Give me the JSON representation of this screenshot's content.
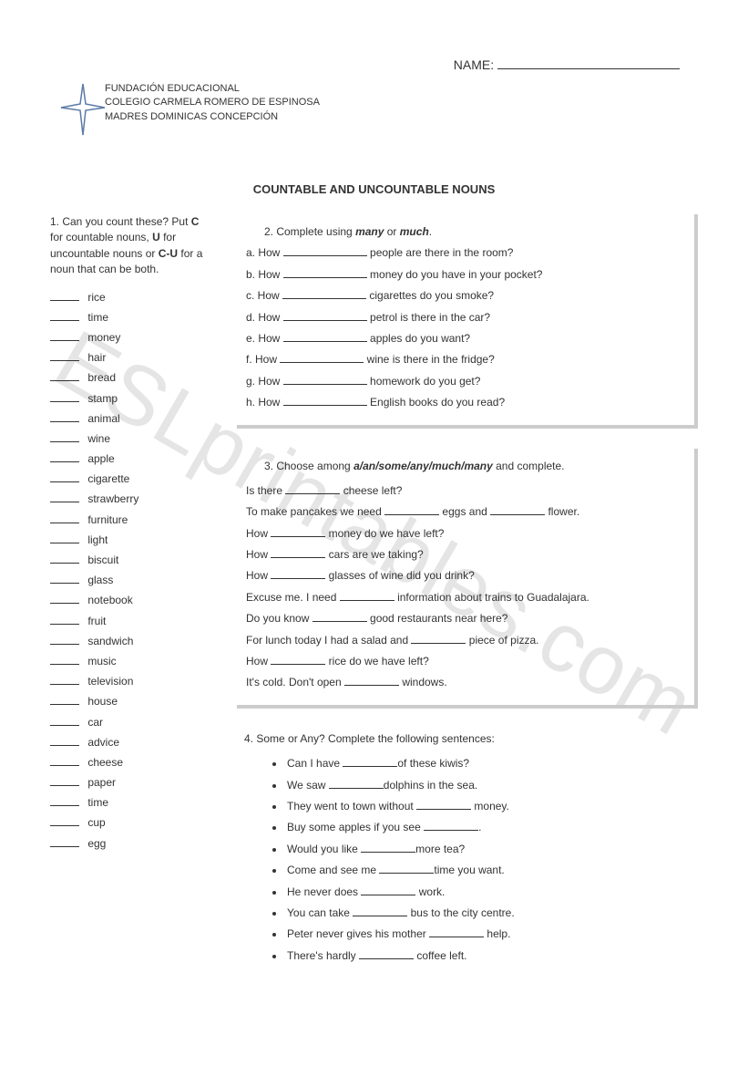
{
  "watermark": "ESLprintables.com",
  "name_label": "NAME:",
  "institution": {
    "line1": "FUNDACIÓN EDUCACIONAL",
    "line2": "COLEGIO CARMELA ROMERO DE ESPINOSA",
    "line3": "MADRES DOMINICAS CONCEPCIÓN"
  },
  "title": "COUNTABLE AND UNCOUNTABLE NOUNS",
  "q1": {
    "pre": "1.  Can you count these? Put ",
    "c": "C",
    "mid1": " for countable nouns, ",
    "u": "U",
    "mid2": " for uncountable nouns or ",
    "cu": "C-U",
    "post": " for a noun that can be both.",
    "items": [
      "rice",
      "time",
      "money",
      "hair",
      "bread",
      "stamp",
      "animal",
      "wine",
      "apple",
      "cigarette",
      "strawberry",
      "furniture",
      "light",
      "biscuit",
      "glass",
      "notebook",
      "fruit",
      "sandwich",
      "music",
      "television",
      "house",
      "car",
      "advice",
      "cheese",
      "paper",
      "time",
      "cup",
      "egg"
    ]
  },
  "q2": {
    "pre": "2.   Complete using ",
    "many": "many",
    "or": " or ",
    "much": "much",
    "post": ".",
    "items": [
      {
        "l": "a.",
        "before": "How",
        "after": "people are there in the room?"
      },
      {
        "l": "b.",
        "before": "How",
        "after": "money do you have in your pocket?"
      },
      {
        "l": "c.",
        "before": "How",
        "after": "cigarettes do you smoke?"
      },
      {
        "l": "d.",
        "before": "How",
        "after": "petrol is there in the car?"
      },
      {
        "l": "e.",
        "before": "How",
        "after": "apples do you want?"
      },
      {
        "l": "f.",
        "before": "How",
        "after": "wine is there in the fridge?"
      },
      {
        "l": "g.",
        "before": "How",
        "after": "homework do you get?"
      },
      {
        "l": "h.",
        "before": "How",
        "after": "English books do you read?"
      }
    ]
  },
  "q3": {
    "pre": "3.   Choose among ",
    "opts": "a/an/some/any/much/many",
    "post": " and complete.",
    "lines": [
      [
        "Is there ",
        " cheese left?"
      ],
      [
        "To make pancakes we need ",
        " eggs and ",
        " flower."
      ],
      [
        "How ",
        " money do we have left?"
      ],
      [
        "How ",
        " cars are we taking?"
      ],
      [
        "How ",
        " glasses of wine did you drink?"
      ],
      [
        "Excuse me. I need ",
        " information about trains to Guadalajara."
      ],
      [
        "Do you know ",
        " good restaurants near here?"
      ],
      [
        "For lunch today I had a salad and ",
        " piece of pizza."
      ],
      [
        "How ",
        " rice do we have left?"
      ],
      [
        "It's cold. Don't open ",
        " windows."
      ]
    ]
  },
  "q4": {
    "title": "4. Some or Any? Complete the following sentences:",
    "lines": [
      [
        "Can I have ",
        "of these kiwis?"
      ],
      [
        " We saw ",
        "dolphins in the sea."
      ],
      [
        "They went to town without ",
        " money."
      ],
      [
        "Buy some apples if you see ",
        "."
      ],
      [
        "Would you like ",
        "more tea?"
      ],
      [
        "Come and see me ",
        "time you want."
      ],
      [
        "He never does ",
        " work."
      ],
      [
        "You can take ",
        " bus to the city centre."
      ],
      [
        "Peter never gives his mother ",
        " help."
      ],
      [
        " There's hardly ",
        " coffee left."
      ]
    ]
  }
}
